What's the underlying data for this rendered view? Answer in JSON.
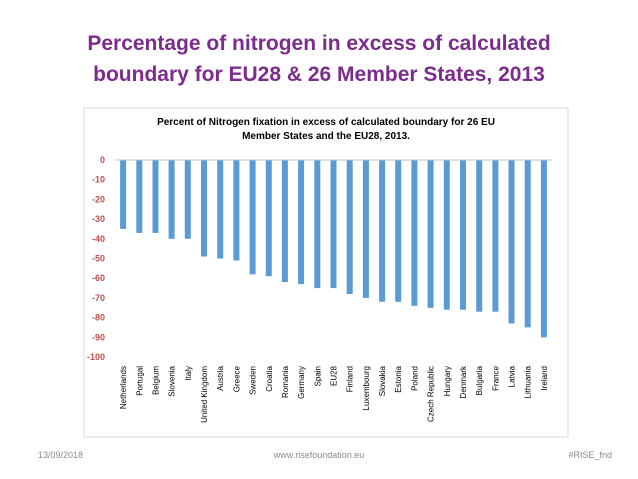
{
  "slide": {
    "title_line1": "Percentage of nitrogen in excess of calculated",
    "title_line2": "boundary for EU28 & 26 Member States, 2013"
  },
  "footer": {
    "date": "13/09/2018",
    "website": "www.risefoundation.eu",
    "hashtag": "#RISE_fnd"
  },
  "colors": {
    "title": "#7b2c8c",
    "bar": "#5b9bd5",
    "axis_text": "#c0504d"
  },
  "chart_data": {
    "type": "bar",
    "title_line1": "Percent of Nitrogen fixation  in excess of calculated boundary for 26 EU",
    "title_line2": "Member States and the EU28, 2013.",
    "categories": [
      "Netherlands",
      "Portugal",
      "Belgium",
      "Slovenia",
      "Italy",
      "United Kingdom",
      "Austria",
      "Greece",
      "Sweden",
      "Croatia",
      "Romania",
      "Germany",
      "Spain",
      "EU28",
      "Finland",
      "Luxembourg",
      "Slovakia",
      "Estonia",
      "Poland",
      "Czech Republic",
      "Hungary",
      "Denmark",
      "Bulgaria",
      "France",
      "Latvia",
      "Lithuania",
      "Ireland"
    ],
    "values": [
      -35,
      -37,
      -37,
      -40,
      -40,
      -49,
      -50,
      -51,
      -58,
      -59,
      -62,
      -63,
      -65,
      -65,
      -68,
      -70,
      -72,
      -72,
      -74,
      -75,
      -76,
      -76,
      -77,
      -77,
      -83,
      -85,
      -90
    ],
    "ylim": [
      -100,
      0
    ],
    "yticks": [
      0,
      -10,
      -20,
      -30,
      -40,
      -50,
      -60,
      -70,
      -80,
      -90,
      -100
    ],
    "xlabel": "",
    "ylabel": "",
    "grid": false,
    "legend": "none"
  }
}
